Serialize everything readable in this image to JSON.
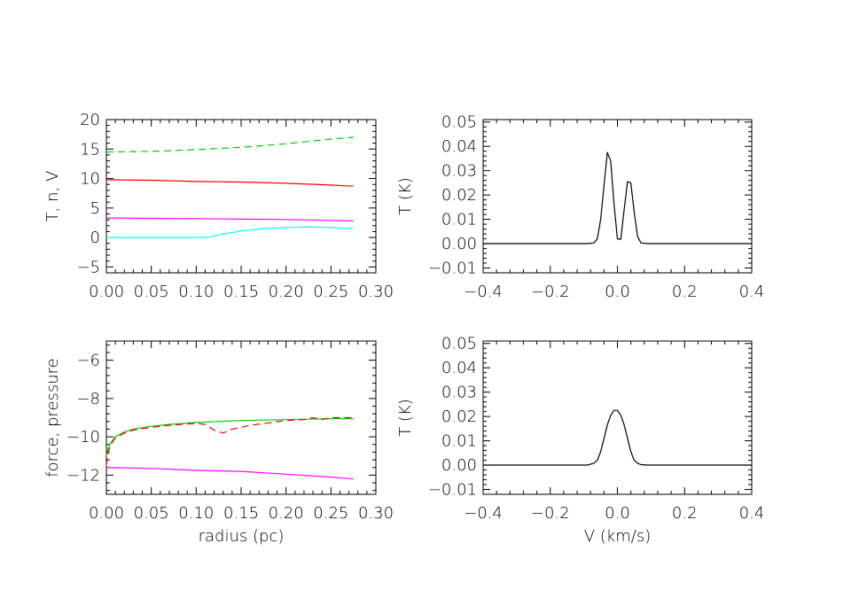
{
  "chart_data": [
    {
      "type": "line",
      "xlabel": "",
      "ylabel": "T, n, V",
      "xlim": [
        0.0,
        0.3
      ],
      "ylim": [
        -6,
        20
      ],
      "xticks": [
        "0.00",
        "0.05",
        "0.10",
        "0.15",
        "0.20",
        "0.25",
        "0.30"
      ],
      "yticks": [
        "-5",
        "0",
        "5",
        "10",
        "15",
        "20"
      ],
      "series": [
        {
          "color": "#00cc00",
          "dashed": true,
          "x": [
            0,
            0.05,
            0.1,
            0.15,
            0.2,
            0.25,
            0.275
          ],
          "y": [
            14.5,
            14.6,
            14.9,
            15.3,
            15.9,
            16.7,
            17.0
          ]
        },
        {
          "color": "#ff0000",
          "dashed": false,
          "x": [
            0,
            0.05,
            0.1,
            0.15,
            0.2,
            0.25,
            0.275
          ],
          "y": [
            9.8,
            9.7,
            9.5,
            9.4,
            9.2,
            8.9,
            8.7
          ]
        },
        {
          "color": "#ff00ff",
          "dashed": false,
          "x": [
            0,
            0.05,
            0.1,
            0.15,
            0.2,
            0.25,
            0.275
          ],
          "y": [
            3.3,
            3.25,
            3.2,
            3.1,
            3.05,
            2.9,
            2.8
          ]
        },
        {
          "color": "#00ffff",
          "dashed": false,
          "x": [
            0,
            0.05,
            0.1,
            0.115,
            0.13,
            0.15,
            0.175,
            0.2,
            0.225,
            0.25,
            0.275
          ],
          "y": [
            0,
            0,
            0,
            0.05,
            0.6,
            1.1,
            1.5,
            1.7,
            1.8,
            1.7,
            1.5
          ]
        }
      ]
    },
    {
      "type": "line",
      "xlabel": "",
      "ylabel": "T (K)",
      "xlim": [
        -0.4,
        0.4
      ],
      "ylim": [
        -0.012,
        0.051
      ],
      "xticks": [
        "-0.4",
        "-0.2",
        "0.0",
        "0.2",
        "0.4"
      ],
      "yticks": [
        "-0.01",
        "0.00",
        "0.01",
        "0.02",
        "0.03",
        "0.04",
        "0.05"
      ],
      "series": [
        {
          "color": "#000000",
          "dashed": false,
          "x": [
            -0.4,
            -0.09,
            -0.07,
            -0.06,
            -0.05,
            -0.04,
            -0.03,
            -0.02,
            -0.01,
            0.0,
            0.01,
            0.02,
            0.03,
            0.04,
            0.05,
            0.06,
            0.07,
            0.09,
            0.4
          ],
          "y": [
            0.0,
            0.0,
            0.0003,
            0.002,
            0.01,
            0.024,
            0.0375,
            0.034,
            0.016,
            0.002,
            0.0018,
            0.014,
            0.0255,
            0.025,
            0.013,
            0.003,
            0.0003,
            0.0,
            0.0
          ]
        }
      ]
    },
    {
      "type": "line",
      "xlabel": "radius (pc)",
      "ylabel": "force, pressure",
      "xlim": [
        0.0,
        0.3
      ],
      "ylim": [
        -13.0,
        -5.0
      ],
      "xticks": [
        "0.00",
        "0.05",
        "0.10",
        "0.15",
        "0.20",
        "0.25",
        "0.30"
      ],
      "yticks": [
        "-12",
        "-10",
        "-8",
        "-6"
      ],
      "series": [
        {
          "color": "#ff00ff",
          "dashed": false,
          "x": [
            0,
            0.05,
            0.1,
            0.15,
            0.2,
            0.25,
            0.275
          ],
          "y": [
            -11.6,
            -11.65,
            -11.75,
            -11.8,
            -11.95,
            -12.1,
            -12.2
          ]
        },
        {
          "color": "#00cc00",
          "dashed": false,
          "x": [
            0,
            0.002,
            0.005,
            0.01,
            0.02,
            0.03,
            0.05,
            0.07,
            0.1,
            0.125,
            0.15,
            0.2,
            0.25,
            0.275
          ],
          "y": [
            -11.0,
            -10.6,
            -10.3,
            -10.0,
            -9.75,
            -9.6,
            -9.45,
            -9.35,
            -9.25,
            -9.2,
            -9.15,
            -9.1,
            -9.05,
            -9.05
          ]
        },
        {
          "color": "#ff0000",
          "dashed": true,
          "x": [
            0,
            0.002,
            0.005,
            0.01,
            0.02,
            0.03,
            0.05,
            0.07,
            0.1,
            0.11,
            0.12,
            0.13,
            0.14,
            0.16,
            0.2,
            0.22,
            0.23,
            0.24,
            0.25,
            0.275
          ],
          "y": [
            -11.5,
            -10.8,
            -10.4,
            -10.05,
            -9.8,
            -9.65,
            -9.5,
            -9.4,
            -9.3,
            -9.35,
            -9.65,
            -9.8,
            -9.6,
            -9.4,
            -9.15,
            -9.1,
            -9.0,
            -9.1,
            -9.0,
            -9.0
          ]
        }
      ]
    },
    {
      "type": "line",
      "xlabel": "V (km/s)",
      "ylabel": "T (K)",
      "xlim": [
        -0.4,
        0.4
      ],
      "ylim": [
        -0.012,
        0.051
      ],
      "xticks": [
        "-0.4",
        "-0.2",
        "0.0",
        "0.2",
        "0.4"
      ],
      "yticks": [
        "-0.01",
        "0.00",
        "0.01",
        "0.02",
        "0.03",
        "0.04",
        "0.05"
      ],
      "series": [
        {
          "color": "#000000",
          "dashed": false,
          "x": [
            -0.4,
            -0.09,
            -0.07,
            -0.06,
            -0.05,
            -0.04,
            -0.03,
            -0.02,
            -0.01,
            0.0,
            0.01,
            0.02,
            0.03,
            0.04,
            0.05,
            0.06,
            0.07,
            0.09,
            0.4
          ],
          "y": [
            0.0,
            0.0,
            0.0008,
            0.002,
            0.0055,
            0.011,
            0.0165,
            0.0205,
            0.0225,
            0.0225,
            0.0205,
            0.0165,
            0.011,
            0.0055,
            0.002,
            0.0008,
            0.0002,
            0.0,
            0.0
          ]
        }
      ]
    }
  ]
}
